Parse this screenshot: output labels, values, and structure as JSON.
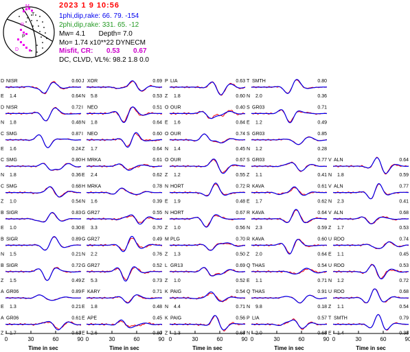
{
  "header": {
    "date": "2023  1  9   10:56",
    "plane1_label": "1phi,dip,rake:",
    "plane1_values": "66. 79. -154",
    "plane2_label": "2phi,dip,rake:",
    "plane2_values": "331. 65.  -12",
    "mw_label": "Mw=",
    "mw_value": "4.1",
    "depth_label": "Depth=",
    "depth_value": "7.0",
    "mo_text": "Mo=  1.74 x10**22 DYNECM",
    "misfit_label": "Misfit, CR:",
    "misfit_value": "0.53",
    "cr_value": "0.67",
    "dc_label": "DC, CLVD, VL%:",
    "dc_values": "98.2    1.8    0.0"
  },
  "beachball": {
    "stations_visible": [
      "M",
      "T",
      "P",
      "D",
      "R"
    ]
  },
  "colors": {
    "observed": "#ff0000",
    "synthetic": "#0000ee",
    "plane2": "#229922",
    "misfit": "#cc00cc",
    "beachball_marks": "#ee00ee"
  },
  "chart_data": {
    "type": "line",
    "xlabel": "Time  in sec",
    "x_ticks": [
      0,
      30,
      60,
      90
    ],
    "xlim": [
      0,
      90
    ],
    "series_legend": [],
    "panels": [
      {
        "col": 0,
        "row": 0,
        "code": "D",
        "station": "NISR",
        "comp": "E",
        "amp": "1.4",
        "corr": "0.60",
        "var": "0.64"
      },
      {
        "col": 0,
        "row": 1,
        "code": "D",
        "station": "NISR",
        "comp": "N",
        "amp": "1.8",
        "corr": "0.72",
        "var": "0.48"
      },
      {
        "col": 0,
        "row": 2,
        "code": "C",
        "station": "SMG",
        "comp": "E",
        "amp": "1.6",
        "corr": "0.87",
        "var": "0.24"
      },
      {
        "col": 0,
        "row": 3,
        "code": "C",
        "station": "SMG",
        "comp": "N",
        "amp": "1.8",
        "corr": "0.80",
        "var": "0.36"
      },
      {
        "col": 0,
        "row": 4,
        "code": "C",
        "station": "SMG",
        "comp": "Z",
        "amp": "1.0",
        "corr": "0.68",
        "var": "0.54"
      },
      {
        "col": 0,
        "row": 5,
        "code": "B",
        "station": "SIGR",
        "comp": "E",
        "amp": "1.0",
        "corr": "0.83",
        "var": "0.30"
      },
      {
        "col": 0,
        "row": 6,
        "code": "B",
        "station": "SIGR",
        "comp": "N",
        "amp": "1.5",
        "corr": "0.89",
        "var": "0.21"
      },
      {
        "col": 0,
        "row": 7,
        "code": "B",
        "station": "SIGR",
        "comp": "Z",
        "amp": "1.5",
        "corr": "0.72",
        "var": "0.49"
      },
      {
        "col": 0,
        "row": 8,
        "code": "A",
        "station": "GR06",
        "comp": "E",
        "amp": "1.3",
        "corr": "0.89",
        "var": "0.21"
      },
      {
        "col": 0,
        "row": 9,
        "code": "A",
        "station": "GR06",
        "comp": "Z",
        "amp": "1.7",
        "corr": "0.61",
        "var": "0.63"
      },
      {
        "col": 1,
        "row": 0,
        "code": "J",
        "station": "XOR",
        "comp": "N",
        "amp": "5.8",
        "corr": "0.69",
        "var": "0.53"
      },
      {
        "col": 1,
        "row": 1,
        "code": "I",
        "station": "NEO",
        "comp": "N",
        "amp": "1.8",
        "corr": "0.51",
        "var": "0.64"
      },
      {
        "col": 1,
        "row": 2,
        "code": "I",
        "station": "NEO",
        "comp": "Z",
        "amp": "1.7",
        "corr": "0.60",
        "var": "0.64"
      },
      {
        "col": 1,
        "row": 3,
        "code": "H",
        "station": "MRKA",
        "comp": "E",
        "amp": "2.4",
        "corr": "0.61",
        "var": "0.62"
      },
      {
        "col": 1,
        "row": 4,
        "code": "H",
        "station": "MRKA",
        "comp": "N",
        "amp": "1.6",
        "corr": "0.78",
        "var": "0.39"
      },
      {
        "col": 1,
        "row": 5,
        "code": "G",
        "station": "GR27",
        "comp": "E",
        "amp": "3.3",
        "corr": "0.55",
        "var": "0.70"
      },
      {
        "col": 1,
        "row": 6,
        "code": "G",
        "station": "GR27",
        "comp": "N",
        "amp": "2.2",
        "corr": "0.49",
        "var": "0.76"
      },
      {
        "col": 1,
        "row": 7,
        "code": "G",
        "station": "GR27",
        "comp": "Z",
        "amp": "5.3",
        "corr": "0.52",
        "var": "0.73"
      },
      {
        "col": 1,
        "row": 8,
        "code": "F",
        "station": "KARY",
        "comp": "E",
        "amp": "1.8",
        "corr": "0.71",
        "var": "0.48"
      },
      {
        "col": 1,
        "row": 9,
        "code": "E",
        "station": "APE",
        "comp": "E",
        "amp": "2.6",
        "corr": "0.45",
        "var": "0.80"
      },
      {
        "col": 2,
        "row": 0,
        "code": "P",
        "station": "LIA",
        "comp": "Z",
        "amp": "1.8",
        "corr": "0.63",
        "var": "0.60"
      },
      {
        "col": 2,
        "row": 1,
        "code": "O",
        "station": "OUR",
        "comp": "E",
        "amp": "1.6",
        "corr": "0.40",
        "var": "0.84"
      },
      {
        "col": 2,
        "row": 2,
        "code": "O",
        "station": "OUR",
        "comp": "N",
        "amp": "1.4",
        "corr": "0.74",
        "var": "0.45"
      },
      {
        "col": 2,
        "row": 3,
        "code": "O",
        "station": "OUR",
        "comp": "Z",
        "amp": "1.2",
        "corr": "0.67",
        "var": "0.55"
      },
      {
        "col": 2,
        "row": 4,
        "code": "N",
        "station": "HORT",
        "comp": "E",
        "amp": "1.9",
        "corr": "0.72",
        "var": "0.48"
      },
      {
        "col": 2,
        "row": 5,
        "code": "N",
        "station": "HORT",
        "comp": "Z",
        "amp": "1.0",
        "corr": "0.67",
        "var": "0.56"
      },
      {
        "col": 2,
        "row": 6,
        "code": "M",
        "station": "PLG",
        "comp": "Z",
        "amp": "1.3",
        "corr": "0.70",
        "var": "0.50"
      },
      {
        "col": 2,
        "row": 7,
        "code": "L",
        "station": "GR13",
        "comp": "Z",
        "amp": "1.0",
        "corr": "0.69",
        "var": "0.52"
      },
      {
        "col": 2,
        "row": 8,
        "code": "K",
        "station": "PAIG",
        "comp": "N",
        "amp": "4.4",
        "corr": "0.54",
        "var": "0.71"
      },
      {
        "col": 2,
        "row": 9,
        "code": "K",
        "station": "PAIG",
        "comp": "Z",
        "amp": "1.3",
        "corr": "0.56",
        "var": "0.68"
      },
      {
        "col": 3,
        "row": 0,
        "code": "T",
        "station": "SMTH",
        "comp": "N",
        "amp": "2.0",
        "corr": "0.80",
        "var": "0.36"
      },
      {
        "col": 3,
        "row": 1,
        "code": "S",
        "station": "GR03",
        "comp": "E",
        "amp": "1.2",
        "corr": "0.71",
        "var": "0.49"
      },
      {
        "col": 3,
        "row": 2,
        "code": "S",
        "station": "GR03",
        "comp": "N",
        "amp": "1.2",
        "corr": "0.85",
        "var": "0.28"
      },
      {
        "col": 3,
        "row": 3,
        "code": "S",
        "station": "GR03",
        "comp": "Z",
        "amp": "1.1",
        "corr": "0.77",
        "var": "0.41"
      },
      {
        "col": 3,
        "row": 4,
        "code": "R",
        "station": "KAVA",
        "comp": "E",
        "amp": "1.7",
        "corr": "0.61",
        "var": "0.62"
      },
      {
        "col": 3,
        "row": 5,
        "code": "R",
        "station": "KAVA",
        "comp": "N",
        "amp": "2.3",
        "corr": "0.64",
        "var": "0.59"
      },
      {
        "col": 3,
        "row": 6,
        "code": "R",
        "station": "KAVA",
        "comp": "Z",
        "amp": "2.0",
        "corr": "0.60",
        "var": "0.64"
      },
      {
        "col": 3,
        "row": 7,
        "code": "Q",
        "station": "THAS",
        "comp": "E",
        "amp": "1.1",
        "corr": "0.54",
        "var": "0.71"
      },
      {
        "col": 3,
        "row": 8,
        "code": "Q",
        "station": "THAS",
        "comp": "N",
        "amp": "9.8",
        "corr": "0.91",
        "var": "0.18"
      },
      {
        "col": 3,
        "row": 9,
        "code": "P",
        "station": "LIA",
        "comp": "N",
        "amp": "2.0",
        "corr": "0.57",
        "var": "0.68"
      },
      {
        "col": 4,
        "row": 3,
        "code": "V",
        "station": "ALN",
        "comp": "N",
        "amp": "1.8",
        "corr": "0.64",
        "var": "0.59"
      },
      {
        "col": 4,
        "row": 4,
        "code": "V",
        "station": "ALN",
        "comp": "N",
        "amp": "2.3",
        "corr": "0.77",
        "var": "0.41"
      },
      {
        "col": 4,
        "row": 5,
        "code": "V",
        "station": "ALN",
        "comp": "Z",
        "amp": "1.7",
        "corr": "0.68",
        "var": "0.53"
      },
      {
        "col": 4,
        "row": 6,
        "code": "U",
        "station": "RDO",
        "comp": "E",
        "amp": "1.1",
        "corr": "0.74",
        "var": "0.45"
      },
      {
        "col": 4,
        "row": 7,
        "code": "U",
        "station": "RDO",
        "comp": "N",
        "amp": "1.2",
        "corr": "0.53",
        "var": "0.72"
      },
      {
        "col": 4,
        "row": 8,
        "code": "U",
        "station": "RDO",
        "comp": "Z",
        "amp": "1.1",
        "corr": "0.68",
        "var": "0.54"
      },
      {
        "col": 4,
        "row": 9,
        "code": "T",
        "station": "SMTH",
        "comp": "E",
        "amp": "1.4",
        "corr": "0.79",
        "var": "0.38"
      }
    ]
  }
}
